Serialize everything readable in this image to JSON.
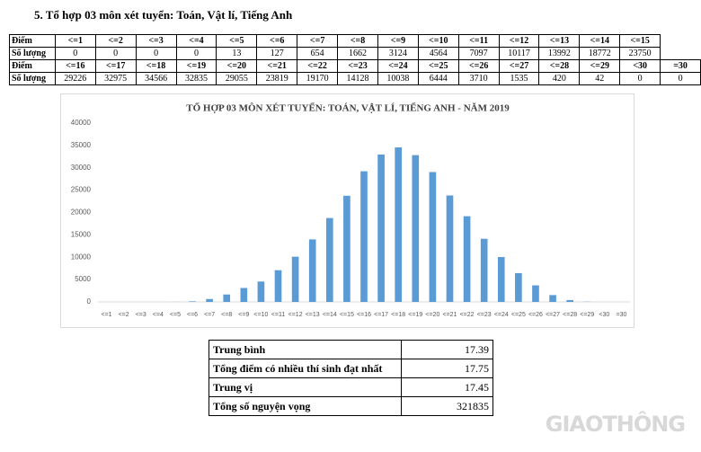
{
  "heading": "5. Tổ hợp 03 môn xét tuyển: Toán, Vật lí, Tiếng Anh",
  "table": {
    "rows": [
      [
        "Điểm",
        "<=1",
        "<=2",
        "<=3",
        "<=4",
        "<=5",
        "<=6",
        "<=7",
        "<=8",
        "<=9",
        "<=10",
        "<=11",
        "<=12",
        "<=13",
        "<=14",
        "<=15"
      ],
      [
        "Số lượng",
        0,
        0,
        0,
        0,
        13,
        127,
        654,
        1662,
        3124,
        4564,
        7097,
        10117,
        13992,
        18772,
        23750
      ],
      [
        "Điểm",
        "<=16",
        "<=17",
        "<=18",
        "<=19",
        "<=20",
        "<=21",
        "<=22",
        "<=23",
        "<=24",
        "<=25",
        "<=26",
        "<=27",
        "<=28",
        "<=29",
        "<30",
        "=30"
      ],
      [
        "Số lượng",
        29226,
        32975,
        34566,
        32835,
        29055,
        23819,
        19170,
        14128,
        10038,
        6444,
        3710,
        1535,
        420,
        42,
        0,
        0
      ]
    ]
  },
  "chart": {
    "type": "bar",
    "title": "TỔ HỢP 03 MÔN XÉT TUYỂN: TOÁN, VẬT LÍ, TIẾNG ANH - NĂM 2019",
    "color": "#5b9bd5",
    "ylim": [
      0,
      40000
    ],
    "yticks": [
      0,
      5000,
      10000,
      15000,
      20000,
      25000,
      30000,
      35000,
      40000
    ]
  },
  "summary": {
    "rows": [
      [
        "Trung bình",
        17.39
      ],
      [
        "Tổng điểm có nhiều thí sinh đạt nhất",
        17.75
      ],
      [
        "Trung vị",
        17.45
      ],
      [
        "Tổng số nguyện vọng",
        321835
      ]
    ]
  },
  "watermark": "GIAOTHÔNG"
}
